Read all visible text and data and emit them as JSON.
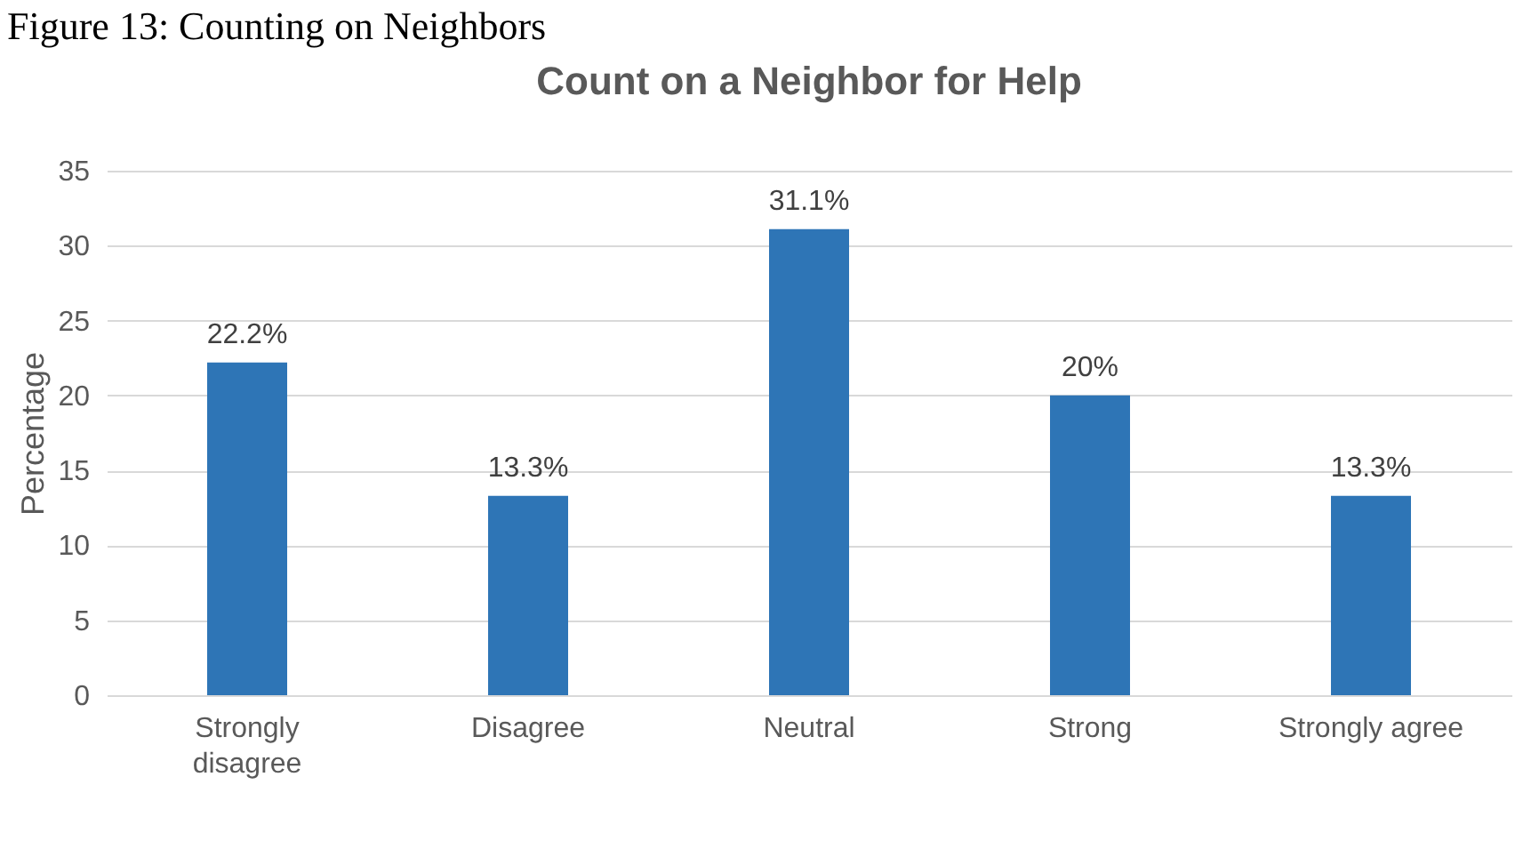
{
  "chart_data": {
    "type": "bar",
    "title": "Count on a Neighbor for Help",
    "ylabel": "Percentage",
    "annotations": [
      "Figure 13: Counting on Neighbors"
    ],
    "categories": [
      "Strongly disagree",
      "Disagree",
      "Neutral",
      "Strong",
      "Strongly agree"
    ],
    "values": [
      22.2,
      13.3,
      31.1,
      20,
      13.3
    ],
    "value_labels": [
      "22.2%",
      "13.3%",
      "31.1%",
      "20%",
      "13.3%"
    ],
    "color": "#2e75b6",
    "ylim": [
      0,
      35
    ],
    "yticks": [
      0,
      5,
      10,
      15,
      20,
      25,
      30,
      35
    ],
    "grid": "y"
  }
}
